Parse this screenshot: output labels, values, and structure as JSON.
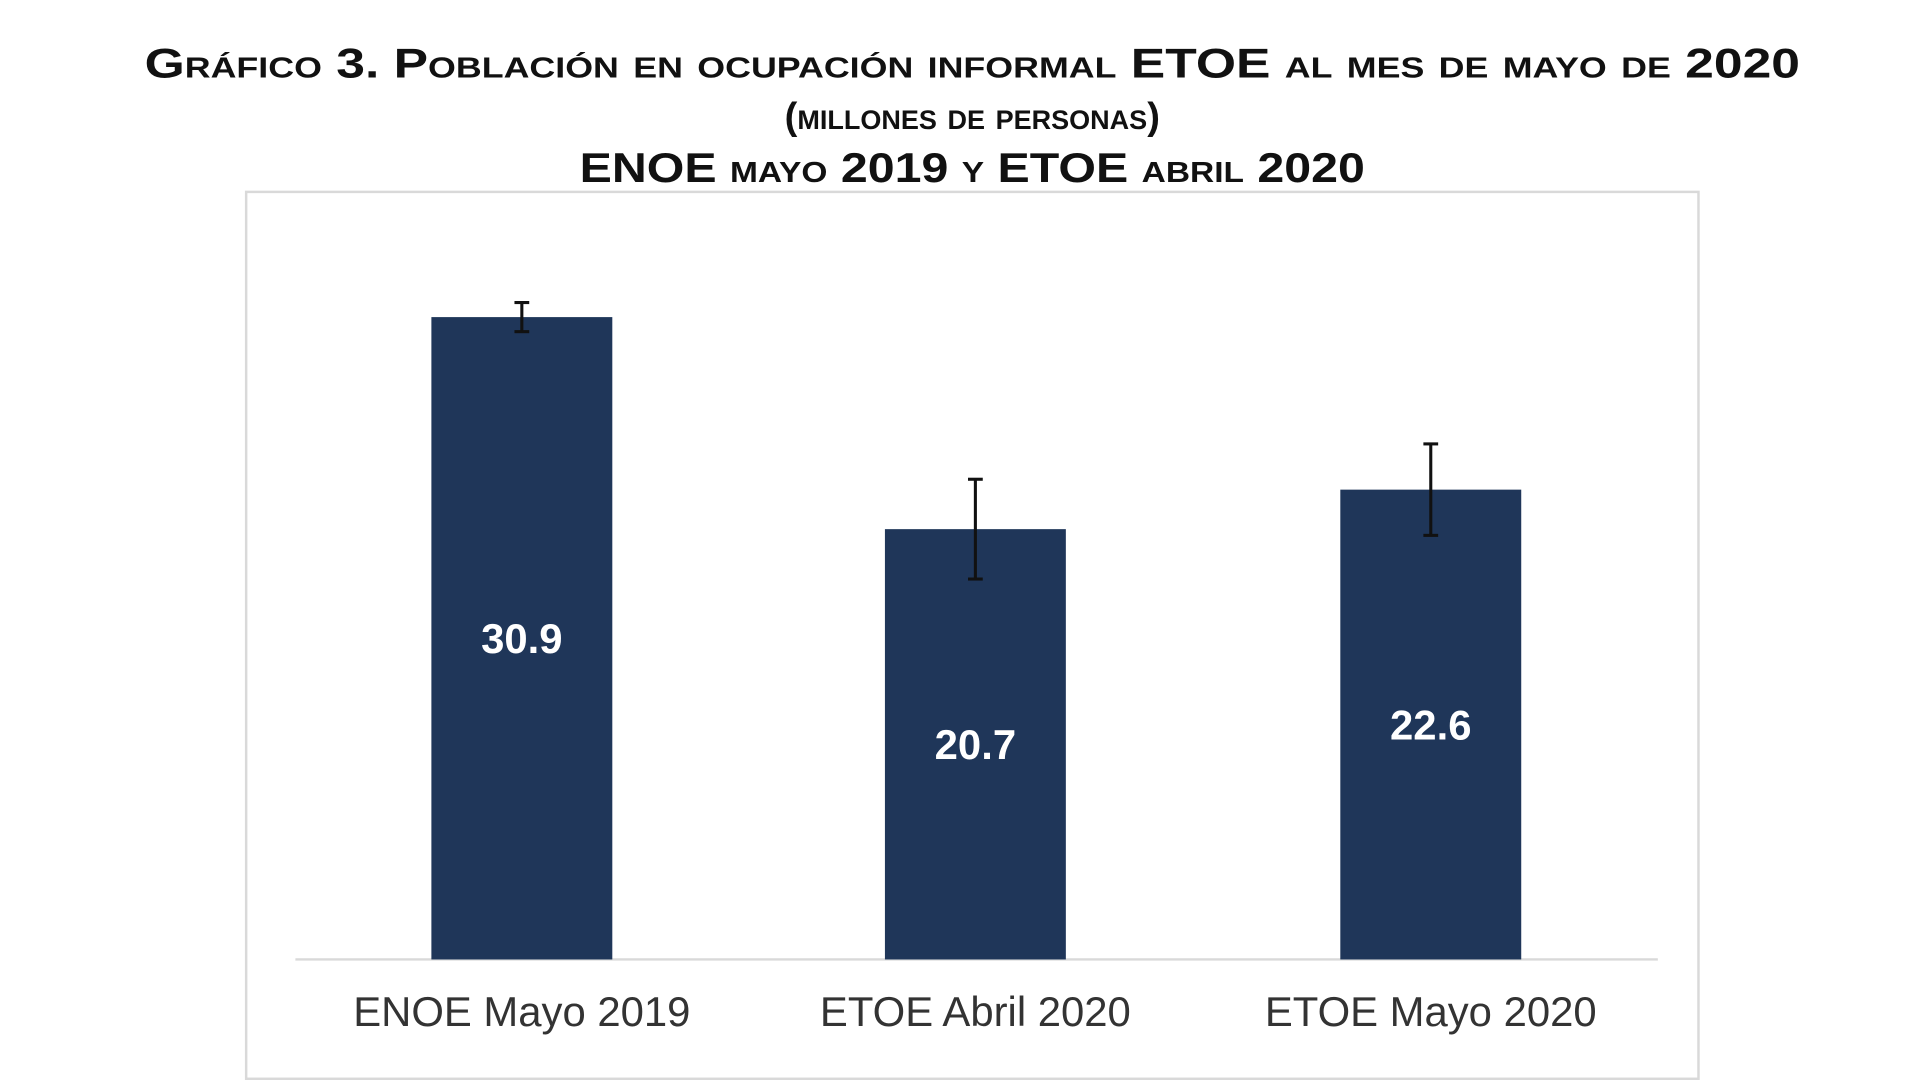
{
  "chart_data": {
    "type": "bar",
    "title": "Gráfico 3. Población en ocupación informal ETOE al mes de mayo de 2020",
    "subtitle": "(millones de personas)",
    "subtitle2": "ENOE mayo 2019 y ETOE abril 2020",
    "categories": [
      "ENOE Mayo 2019",
      "ETOE Abril 2020",
      "ETOE Mayo 2020"
    ],
    "values": [
      30.9,
      20.7,
      22.6
    ],
    "value_labels": [
      "30.9",
      "20.7",
      "22.6"
    ],
    "error_bars": [
      0.7,
      2.4,
      2.2
    ],
    "xlabel": "",
    "ylabel": "",
    "ylim": [
      0,
      36
    ],
    "grid": false,
    "legend": "none",
    "colors": {
      "bar": "#1f3659",
      "error_bar": "#111111",
      "frame": "#d9d9d9",
      "baseline": "#d9d9d9"
    }
  }
}
